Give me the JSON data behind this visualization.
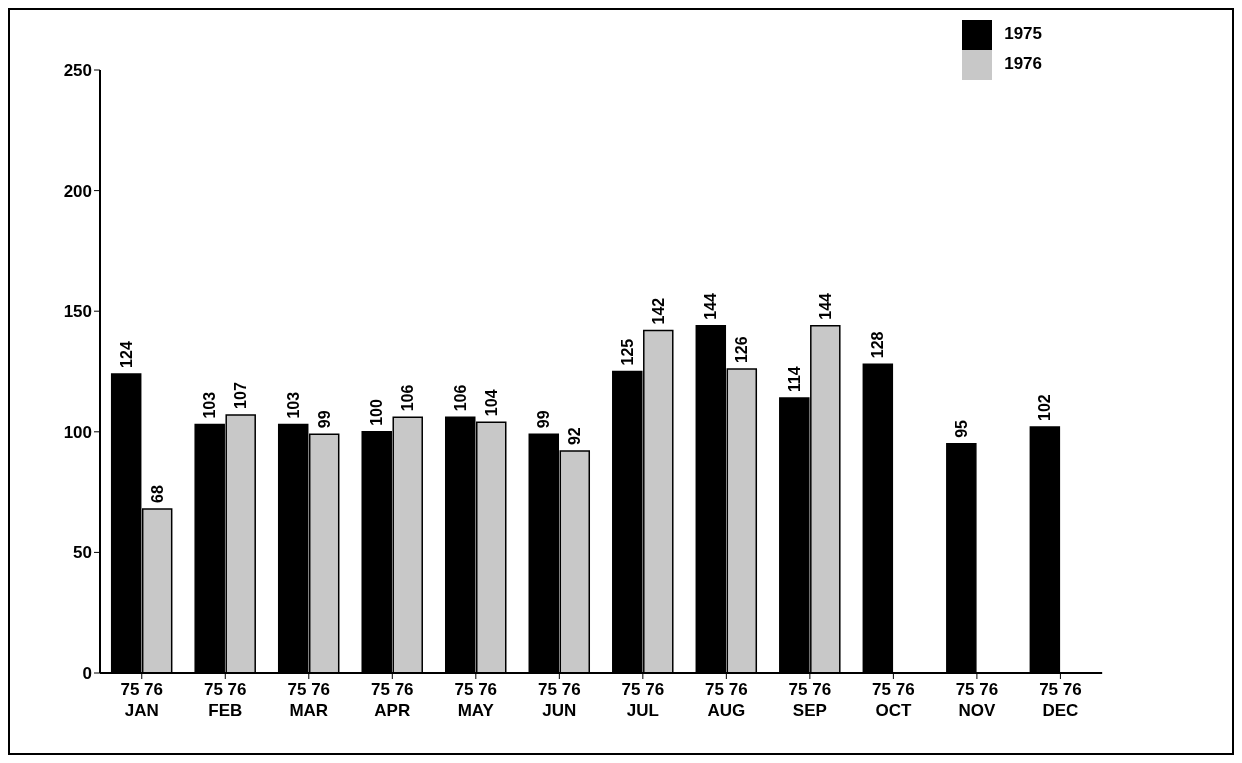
{
  "chart_data": {
    "type": "bar",
    "categories": [
      "75 76\nJAN",
      "75 76\nFEB",
      "75 76\nMAR",
      "75 76\nAPR",
      "75 76\nMAY",
      "75 76\nJUN",
      "75 76\nJUL",
      "75 76\nAUG",
      "75 76\nSEP",
      "75 76\nOCT",
      "75 76\nNOV",
      "75 76\nDEC"
    ],
    "series": [
      {
        "name": "1975",
        "color": "#000000",
        "values": [
          124,
          103,
          103,
          100,
          106,
          99,
          125,
          144,
          114,
          128,
          95,
          102
        ]
      },
      {
        "name": "1976",
        "color": "#c8c8c8",
        "values": [
          68,
          107,
          99,
          106,
          104,
          92,
          142,
          126,
          144,
          null,
          null,
          null
        ]
      }
    ],
    "ylim": [
      0,
      250
    ],
    "yticks": [
      0,
      50,
      100,
      150,
      200,
      250
    ],
    "grid": false,
    "legend": "top right",
    "data_labels": true
  }
}
